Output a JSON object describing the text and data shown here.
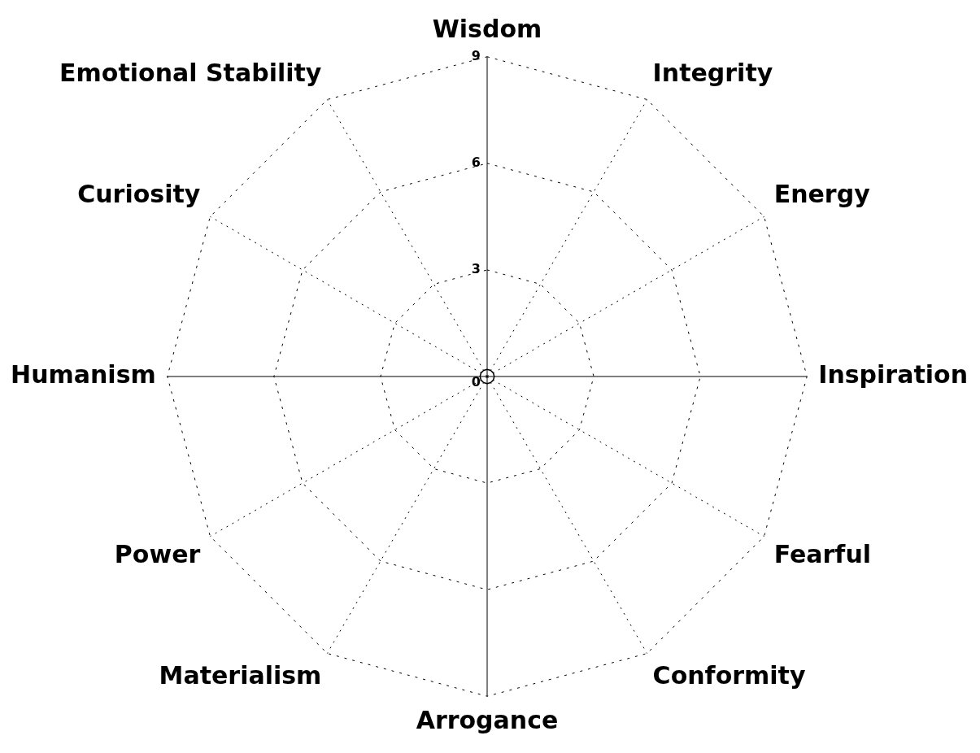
{
  "chart_data": {
    "type": "radar",
    "categories": [
      "Wisdom",
      "Integrity",
      "Energy",
      "Inspiration",
      "Fearful",
      "Conformity",
      "Arrogance",
      "Materialism",
      "Power",
      "Humanism",
      "Curiosity",
      "Emotional Stability"
    ],
    "series": [
      {
        "color": "#000000",
        "values": [
          0.2,
          0.2,
          0.2,
          0.2,
          0.2,
          0.2,
          0.2,
          0.2,
          0.2,
          0.2,
          0.2,
          0.2
        ]
      }
    ],
    "ylim": [
      0,
      9
    ],
    "yticks": [
      0,
      3,
      6,
      9
    ],
    "grid": true,
    "legend": false,
    "marker": "none",
    "line_style": "solid"
  }
}
